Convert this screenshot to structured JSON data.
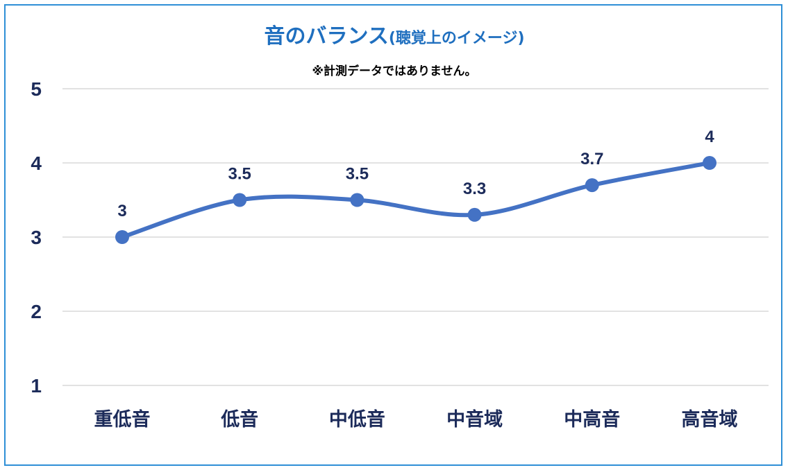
{
  "chart_data": {
    "type": "line",
    "title": "音のバランス",
    "title_suffix": "(聴覚上のイメージ)",
    "subtitle": "※計測データではありません。",
    "categories": [
      "重低音",
      "低音",
      "中低音",
      "中音域",
      "中高音",
      "高音域"
    ],
    "series": [
      {
        "values": [
          3,
          3.5,
          3.5,
          3.3,
          3.7,
          4
        ]
      }
    ],
    "data_labels": [
      "3",
      "3.5",
      "3.5",
      "3.3",
      "3.7",
      "4"
    ],
    "y_ticks": [
      "1",
      "2",
      "3",
      "4",
      "5"
    ],
    "ylim": [
      1,
      5
    ],
    "smooth": true,
    "grid": true,
    "legend": "none",
    "colors": {
      "line": "#4472c4",
      "title": "#1f6fbf",
      "text": "#1c2b5a",
      "grid": "#d9d9d9",
      "border": "#2e8fd6"
    }
  }
}
